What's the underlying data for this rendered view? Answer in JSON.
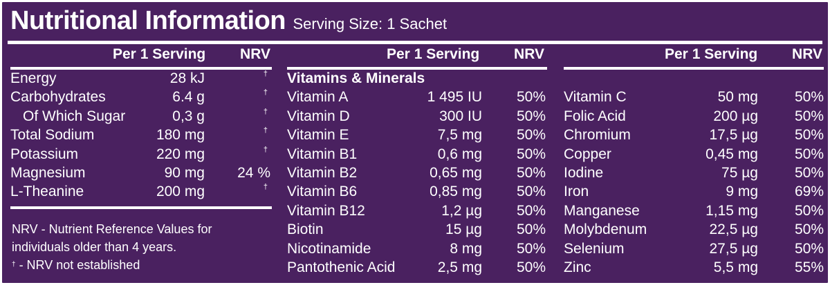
{
  "title": "Nutritional Information",
  "serving": "Serving Size: 1 Sachet",
  "headers": {
    "per": "Per 1 Serving",
    "nrv": "NRV"
  },
  "dagger": "†",
  "col1": {
    "rows": [
      {
        "name": "Energy",
        "value": "28 kJ",
        "nrv": "†"
      },
      {
        "name": "Carbohydrates",
        "value": "6.4 g",
        "nrv": "†"
      },
      {
        "name": "  Of Which Sugar",
        "value": "0,3 g",
        "nrv": "†"
      },
      {
        "name": "Total Sodium",
        "value": "180 mg",
        "nrv": "†"
      },
      {
        "name": "Potassium",
        "value": "220 mg",
        "nrv": "†"
      },
      {
        "name": "Magnesium",
        "value": "90 mg",
        "nrv": "24 %"
      },
      {
        "name": "L-Theanine",
        "value": "200 mg",
        "nrv": "†"
      }
    ],
    "footnote_line1": "NRV - Nutrient Reference Values for",
    "footnote_line2": "individuals older than 4 years.",
    "footnote_line3": " - NRV not established"
  },
  "col2": {
    "section": "Vitamins & Minerals",
    "rows": [
      {
        "name": "Vitamin A",
        "value": "1 495 IU",
        "nrv": "50%"
      },
      {
        "name": "Vitamin D",
        "value": "300 IU",
        "nrv": "50%"
      },
      {
        "name": "Vitamin E",
        "value": "7,5 mg",
        "nrv": "50%"
      },
      {
        "name": "Vitamin B1",
        "value": "0,6 mg",
        "nrv": "50%"
      },
      {
        "name": "Vitamin B2",
        "value": "0,65 mg",
        "nrv": "50%"
      },
      {
        "name": "Vitamin B6",
        "value": "0,85 mg",
        "nrv": "50%"
      },
      {
        "name": "Vitamin B12",
        "value": "1,2 µg",
        "nrv": "50%"
      },
      {
        "name": "Biotin",
        "value": "15 µg",
        "nrv": "50%"
      },
      {
        "name": "Nicotinamide",
        "value": "8 mg",
        "nrv": "50%"
      },
      {
        "name": "Pantothenic Acid",
        "value": "2,5 mg",
        "nrv": "50%"
      }
    ]
  },
  "col3": {
    "rows": [
      {
        "name": "Vitamin C",
        "value": "50 mg",
        "nrv": "50%"
      },
      {
        "name": "Folic Acid",
        "value": "200 µg",
        "nrv": "50%"
      },
      {
        "name": "Chromium",
        "value": "17,5 µg",
        "nrv": "50%"
      },
      {
        "name": "Copper",
        "value": "0,45 mg",
        "nrv": "50%"
      },
      {
        "name": "Iodine",
        "value": "75 µg",
        "nrv": "50%"
      },
      {
        "name": "Iron",
        "value": "9 mg",
        "nrv": "69%"
      },
      {
        "name": "Manganese",
        "value": "1,15 mg",
        "nrv": "50%"
      },
      {
        "name": "Molybdenum",
        "value": "22,5 µg",
        "nrv": "50%"
      },
      {
        "name": "Selenium",
        "value": "27,5 µg",
        "nrv": "50%"
      },
      {
        "name": "Zinc",
        "value": "5,5 mg",
        "nrv": "55%"
      }
    ]
  },
  "colors": {
    "background": "#4a2160",
    "text": "#ffffff"
  }
}
